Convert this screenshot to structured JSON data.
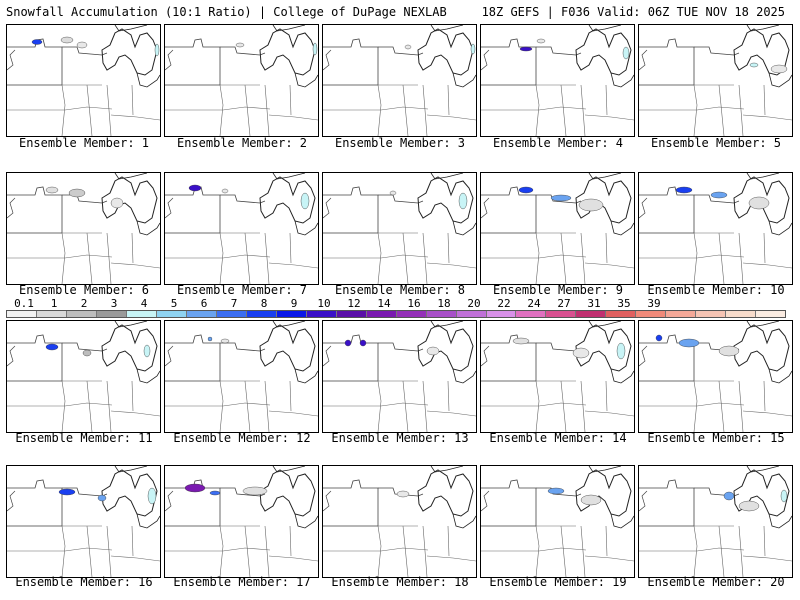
{
  "header": {
    "left": "Snowfall Accumulation (10:1 Ratio) | College of DuPage NEXLAB",
    "right": "18Z GEFS | F036 Valid: 06Z TUE NOV 18 2025"
  },
  "members": [
    {
      "label": "Ensemble Member: 1"
    },
    {
      "label": "Ensemble Member: 2"
    },
    {
      "label": "Ensemble Member: 3"
    },
    {
      "label": "Ensemble Member: 4"
    },
    {
      "label": "Ensemble Member: 5"
    },
    {
      "label": "Ensemble Member: 6"
    },
    {
      "label": "Ensemble Member: 7"
    },
    {
      "label": "Ensemble Member: 8"
    },
    {
      "label": "Ensemble Member: 9"
    },
    {
      "label": "Ensemble Member: 10"
    },
    {
      "label": "Ensemble Member: 11"
    },
    {
      "label": "Ensemble Member: 12"
    },
    {
      "label": "Ensemble Member: 13"
    },
    {
      "label": "Ensemble Member: 14"
    },
    {
      "label": "Ensemble Member: 15"
    },
    {
      "label": "Ensemble Member: 16"
    },
    {
      "label": "Ensemble Member: 17"
    },
    {
      "label": "Ensemble Member: 18"
    },
    {
      "label": "Ensemble Member: 19"
    },
    {
      "label": "Ensemble Member: 20"
    }
  ],
  "colorbar": {
    "labels": [
      "0.1",
      "1",
      "2",
      "3",
      "4",
      "5",
      "6",
      "7",
      "8",
      "9",
      "10",
      "12",
      "14",
      "16",
      "18",
      "20",
      "22",
      "24",
      "27",
      "31",
      "35",
      "39"
    ],
    "colors": [
      "#f2f2f2",
      "#d9d9d9",
      "#bdbdbd",
      "#9a9a9a",
      "#c8f4f6",
      "#8fd3f2",
      "#6aa3f0",
      "#3c6ef2",
      "#1a3ff0",
      "#0a18e8",
      "#3a10c8",
      "#5a10a8",
      "#7a1ab0",
      "#9430b8",
      "#a850c8",
      "#c070d8",
      "#d890e8",
      "#e070c0",
      "#d85090",
      "#c03070",
      "#e06060",
      "#f08a7a",
      "#f4a898",
      "#f6c4b4",
      "#f8dccc",
      "#fbece2"
    ]
  }
}
